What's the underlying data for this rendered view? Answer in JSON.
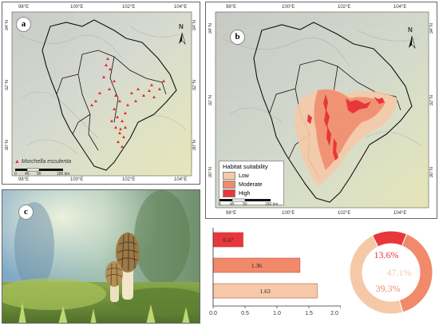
{
  "panels": {
    "a": {
      "label": "a",
      "north": "N",
      "legend_species": "Morchella esculenta",
      "scale_ticks": [
        "0",
        "45",
        "90",
        "180 km"
      ],
      "top_ticks": [
        "98°E",
        "100°E",
        "102°E",
        "104°E"
      ],
      "bottom_ticks": [
        "98°E",
        "100°E",
        "102°E",
        "104°E"
      ],
      "left_ticks": [
        "34°N",
        "32°N",
        "30°N"
      ],
      "right_ticks": [
        "34°N",
        "32°N",
        "30°N"
      ]
    },
    "b": {
      "label": "b",
      "north": "N",
      "legend_title": "Habitat suitability",
      "legend_items": [
        {
          "label": "Low",
          "color": "#f5c9a8"
        },
        {
          "label": "Moderate",
          "color": "#f08a6a"
        },
        {
          "label": "High",
          "color": "#e8373a"
        }
      ],
      "scale_ticks": [
        "0",
        "45",
        "90",
        "180 km"
      ],
      "top_ticks": [
        "98°E",
        "100°E",
        "102°E",
        "104°E"
      ],
      "bottom_ticks": [
        "98°E",
        "100°E",
        "102°E",
        "104°E"
      ],
      "left_ticks": [
        "34°N",
        "32°N",
        "30°N"
      ],
      "right_ticks": [
        "34°N",
        "32°N",
        "30°N"
      ]
    },
    "c": {
      "label": "c"
    }
  },
  "chart_data": [
    {
      "type": "bar",
      "orientation": "horizontal",
      "categories": [
        "High",
        "Moderate",
        "Low"
      ],
      "values": [
        0.47,
        1.36,
        1.63
      ],
      "value_labels": [
        "0.47",
        "1.36",
        "1.63"
      ],
      "colors": [
        "#e8373a",
        "#f08a6a",
        "#f5c9a8"
      ],
      "xlim": [
        0,
        2.0
      ],
      "x_ticks": [
        "0.0",
        "0.5",
        "1.0",
        "1.5",
        "2.0"
      ]
    },
    {
      "type": "pie",
      "style": "donut",
      "categories": [
        "High",
        "Moderate",
        "Low"
      ],
      "values": [
        13.6,
        39.3,
        47.1
      ],
      "value_labels": [
        "13.6%",
        "39.3%",
        "47.1%"
      ],
      "colors": [
        "#e8373a",
        "#f08a6a",
        "#f5c9a8"
      ]
    }
  ]
}
